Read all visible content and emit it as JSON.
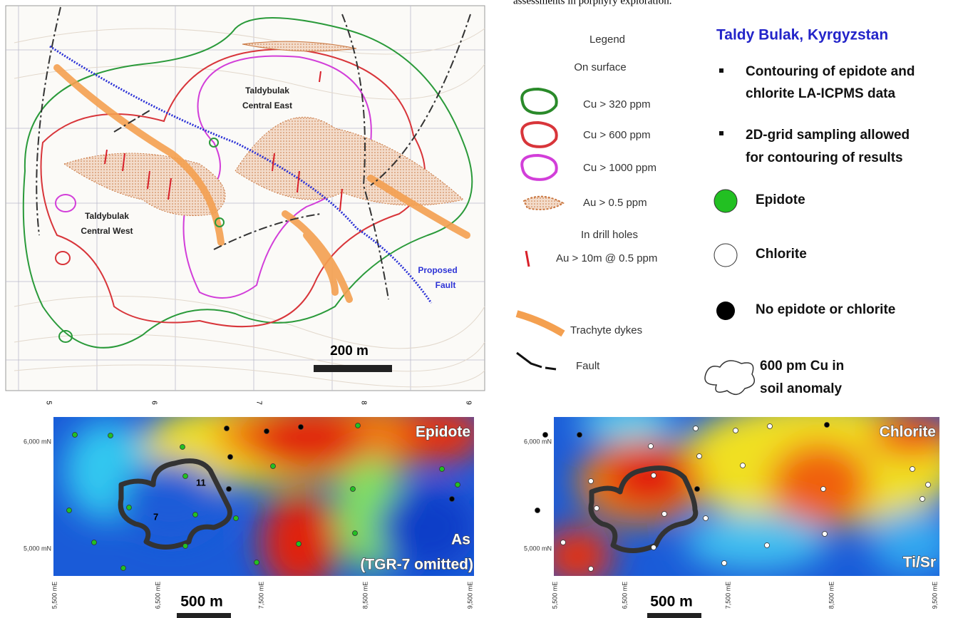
{
  "caption_fragment": "assessments in porphyry exploration.",
  "map": {
    "labels": {
      "central_east": [
        "Taldybulak",
        "Central East"
      ],
      "central_west": [
        "Taldybulak",
        "Central West"
      ],
      "fault": [
        "Proposed",
        "Fault"
      ]
    },
    "scale": "200 m",
    "top_ticks": [
      "5",
      "6",
      "7",
      "8",
      "9"
    ]
  },
  "legend": {
    "title": "Legend",
    "surface_heading": "On surface",
    "items": [
      "Cu > 320 ppm",
      "Cu > 600 ppm",
      "Cu > 1000 ppm",
      "Au > 0.5 ppm"
    ],
    "drill_heading": "In drill holes",
    "drill_item": "Au > 10m @ 0.5 ppm",
    "dykes": "Trachyte dykes",
    "fault": "Fault"
  },
  "notes": {
    "title": "Taldy Bulak, Kyrgyzstan",
    "bullets": [
      [
        "Contouring of epidote and",
        "chlorite LA-ICPMS data"
      ],
      [
        "2D-grid sampling allowed",
        "for contouring of results"
      ]
    ],
    "symbols": [
      "Epidote",
      "Chlorite",
      "No epidote or chlorite"
    ],
    "anomaly": [
      "600 pm Cu in",
      "soil anomaly"
    ]
  },
  "panels": [
    {
      "title": "Epidote",
      "variable": "As",
      "note": "(TGR-7 omitted)",
      "labels": [
        "11",
        "7"
      ],
      "scale": "500 m"
    },
    {
      "title": "Chlorite",
      "variable": "Ti/Sr",
      "scale": "500 m"
    }
  ],
  "northings": [
    "6,000 mN",
    "5,000 mN"
  ],
  "eastings": [
    "5,500 mE",
    "6,500 mE",
    "7,500 mE",
    "8,500 mE",
    "9,500 mE"
  ]
}
